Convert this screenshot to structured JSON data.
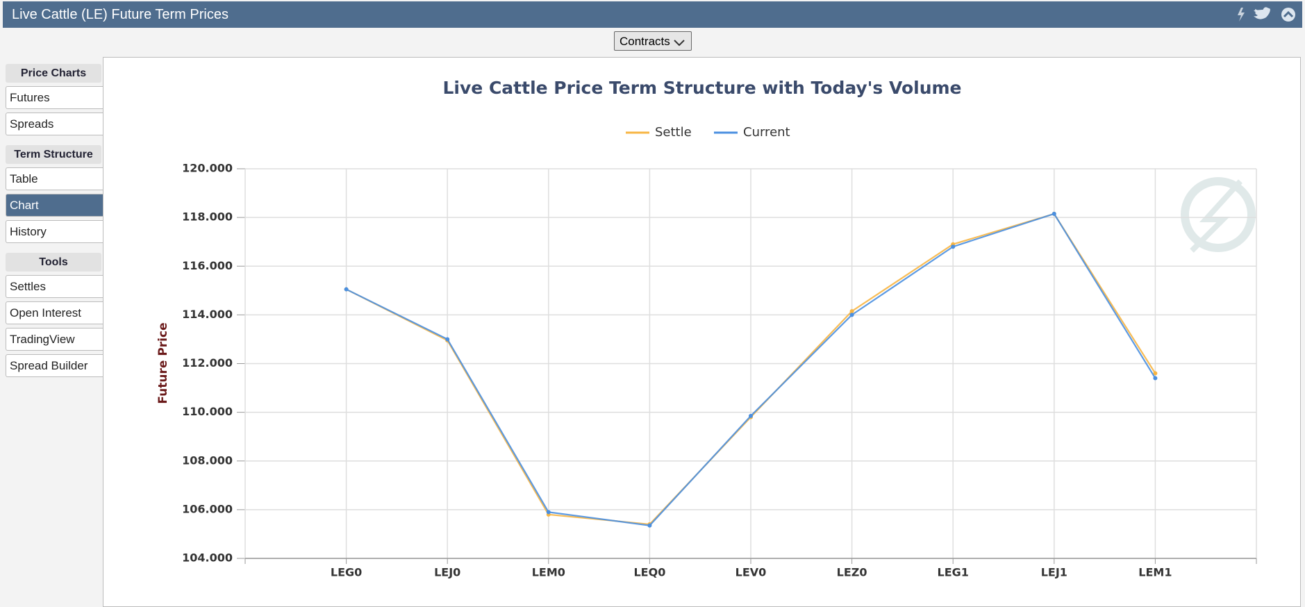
{
  "header": {
    "title": "Live Cattle (LE) Future Term Prices"
  },
  "toolbar": {
    "contracts_button": "Contracts"
  },
  "sidebar": [
    {
      "heading": "Price Charts",
      "items": [
        "Futures",
        "Spreads"
      ]
    },
    {
      "heading": "Term Structure",
      "items": [
        "Table",
        "Chart",
        "History"
      ]
    },
    {
      "heading": "Tools",
      "items": [
        "Settles",
        "Open Interest",
        "TradingView",
        "Spread Builder"
      ]
    }
  ],
  "chart_data": {
    "type": "line",
    "title": "Live Cattle Price Term Structure with Today's Volume",
    "y_label": "Future Price",
    "categories": [
      null,
      "LEG0",
      "LEJ0",
      "LEM0",
      "LEQ0",
      "LEV0",
      "LEZ0",
      "LEG1",
      "LEJ1",
      "LEM1",
      null
    ],
    "series": [
      {
        "name": "Settle",
        "color": "#f7b543",
        "values": [
          null,
          115.05,
          112.95,
          105.8,
          105.4,
          109.8,
          114.15,
          116.9,
          118.15,
          111.6,
          null
        ]
      },
      {
        "name": "Current",
        "color": "#4a8fe0",
        "values": [
          null,
          115.05,
          113.0,
          105.9,
          105.35,
          109.85,
          114.0,
          116.8,
          118.15,
          111.4,
          null
        ]
      }
    ],
    "ylim": [
      104,
      120
    ],
    "yticks": [
      {
        "value": 104,
        "label": "104.000"
      },
      {
        "value": 106,
        "label": "106.000"
      },
      {
        "value": 108,
        "label": "108.000"
      },
      {
        "value": 110,
        "label": "110.000"
      },
      {
        "value": 112,
        "label": "112.000"
      },
      {
        "value": 114,
        "label": "114.000"
      },
      {
        "value": 116,
        "label": "116.000"
      },
      {
        "value": 118,
        "label": "118.000"
      },
      {
        "value": 120,
        "label": "120.000"
      }
    ],
    "grid": true
  }
}
